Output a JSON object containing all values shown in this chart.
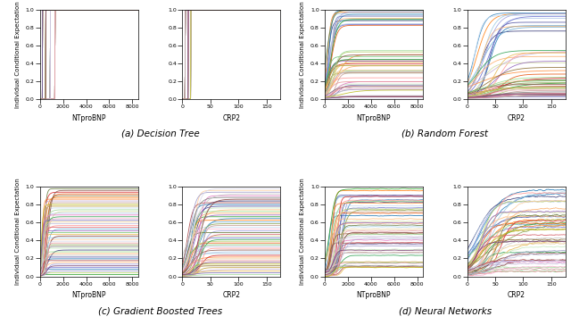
{
  "title_a": "(a) Decision Tree",
  "title_b": "(b) Random Forest",
  "title_c": "(c) Gradient Boosted Trees",
  "title_d": "(d) Neural Networks",
  "xlabel1": "NTproBNP",
  "xlabel2": "CRP2",
  "ylabel": "Individual Conditional Expectation",
  "xlim1": [
    0,
    8500
  ],
  "xlim2": [
    0,
    175
  ],
  "ylim": [
    0.0,
    1.0
  ],
  "n_curves": 50,
  "figsize": [
    6.4,
    3.64
  ],
  "dpi": 100,
  "lw": 0.6,
  "fs_ylabel": 5.0,
  "fs_xlabel": 5.5,
  "fs_tick": 4.5,
  "fs_title": 7.5
}
